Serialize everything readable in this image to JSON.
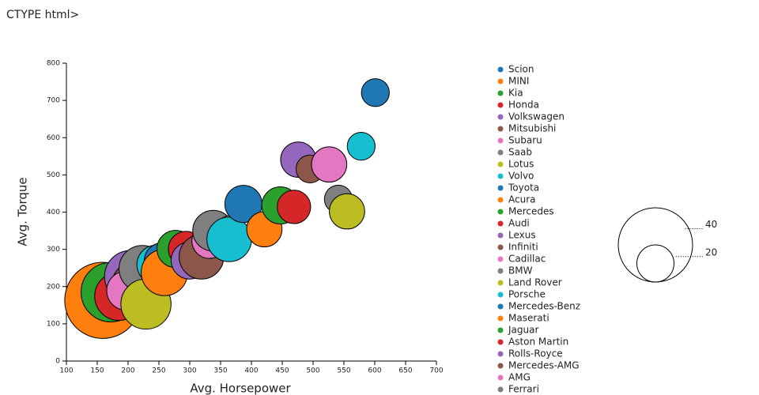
{
  "page_text": "CTYPE html>",
  "chart_data": {
    "type": "bubble",
    "x_label": "Avg. Horsepower",
    "y_label": "Avg. Torque",
    "xlim": [
      100,
      700
    ],
    "xticks": [
      100,
      150,
      200,
      250,
      300,
      350,
      400,
      450,
      500,
      550,
      600,
      650,
      700
    ],
    "ylim": [
      0,
      800
    ],
    "yticks": [
      0,
      100,
      200,
      300,
      400,
      500,
      600,
      700,
      800
    ],
    "series": [
      {
        "name": "Scion",
        "color": "#1f77b4",
        "x": [
          155
        ],
        "values": [
          150
        ],
        "sizes": [
          15
        ]
      },
      {
        "name": "MINI",
        "color": "#ff7f0e",
        "x": [
          159
        ],
        "values": [
          163
        ],
        "sizes": [
          41
        ]
      },
      {
        "name": "Kia",
        "color": "#2ca02c",
        "x": [
          172
        ],
        "values": [
          185
        ],
        "sizes": [
          32
        ]
      },
      {
        "name": "Honda",
        "color": "#d62728",
        "x": [
          185
        ],
        "values": [
          174
        ],
        "sizes": [
          26
        ]
      },
      {
        "name": "Volkswagen",
        "color": "#9467bd",
        "x": [
          204
        ],
        "values": [
          227
        ],
        "sizes": [
          28
        ]
      },
      {
        "name": "Mitsubishi",
        "color": "#8c564b",
        "x": [
          210
        ],
        "values": [
          206
        ],
        "sizes": [
          24
        ]
      },
      {
        "name": "Subaru",
        "color": "#e377c2",
        "x": [
          197
        ],
        "values": [
          189
        ],
        "sizes": [
          21
        ]
      },
      {
        "name": "Saab",
        "color": "#7f7f7f",
        "x": [
          223
        ],
        "values": [
          248
        ],
        "sizes": [
          25
        ]
      },
      {
        "name": "Lotus",
        "color": "#bcbd22",
        "x": [
          229
        ],
        "values": [
          153
        ],
        "sizes": [
          27
        ]
      },
      {
        "name": "Volvo",
        "color": "#17becf",
        "x": [
          246
        ],
        "values": [
          259
        ],
        "sizes": [
          21
        ]
      },
      {
        "name": "Toyota",
        "color": "#1f77b4",
        "x": [
          255
        ],
        "values": [
          270
        ],
        "sizes": [
          19
        ]
      },
      {
        "name": "Acura",
        "color": "#ff7f0e",
        "x": [
          259
        ],
        "values": [
          238
        ],
        "sizes": [
          25
        ]
      },
      {
        "name": "Mercedes",
        "color": "#2ca02c",
        "x": [
          277
        ],
        "values": [
          301
        ],
        "sizes": [
          20
        ]
      },
      {
        "name": "Audi",
        "color": "#d62728",
        "x": [
          294
        ],
        "values": [
          301
        ],
        "sizes": [
          19
        ]
      },
      {
        "name": "Lexus",
        "color": "#9467bd",
        "x": [
          300
        ],
        "values": [
          270
        ],
        "sizes": [
          20
        ]
      },
      {
        "name": "Infiniti",
        "color": "#8c564b",
        "x": [
          319
        ],
        "values": [
          280
        ],
        "sizes": [
          24
        ]
      },
      {
        "name": "Cadillac",
        "color": "#e377c2",
        "x": [
          332
        ],
        "values": [
          323
        ],
        "sizes": [
          19
        ]
      },
      {
        "name": "BMW",
        "color": "#7f7f7f",
        "x": [
          338
        ],
        "values": [
          350
        ],
        "sizes": [
          22
        ]
      },
      {
        "name": "Land Rover",
        "color": "#bcbd22",
        "x": [
          367
        ],
        "values": [
          354
        ],
        "sizes": [
          15
        ]
      },
      {
        "name": "Porsche",
        "color": "#17becf",
        "x": [
          364
        ],
        "values": [
          327
        ],
        "sizes": [
          24
        ]
      },
      {
        "name": "Mercedes-Benz",
        "color": "#1f77b4",
        "x": [
          387
        ],
        "values": [
          422
        ],
        "sizes": [
          20
        ]
      },
      {
        "name": "Maserati",
        "color": "#ff7f0e",
        "x": [
          421
        ],
        "values": [
          354
        ],
        "sizes": [
          19
        ]
      },
      {
        "name": "Jaguar",
        "color": "#2ca02c",
        "x": [
          447
        ],
        "values": [
          418
        ],
        "sizes": [
          20
        ]
      },
      {
        "name": "Aston Martin",
        "color": "#d62728",
        "x": [
          469
        ],
        "values": [
          414
        ],
        "sizes": [
          18
        ]
      },
      {
        "name": "Rolls-Royce",
        "color": "#9467bd",
        "x": [
          476
        ],
        "values": [
          541
        ],
        "sizes": [
          19
        ]
      },
      {
        "name": "Mercedes-AMG",
        "color": "#8c564b",
        "x": [
          495
        ],
        "values": [
          516
        ],
        "sizes": [
          15
        ]
      },
      {
        "name": "AMG",
        "color": "#e377c2",
        "x": [
          526
        ],
        "values": [
          528
        ],
        "sizes": [
          19
        ]
      },
      {
        "name": "Ferrari",
        "color": "#7f7f7f",
        "x": [
          541
        ],
        "values": [
          435
        ],
        "sizes": [
          15
        ]
      },
      {
        "name": null,
        "color": "#bcbd22",
        "x": [
          555
        ],
        "values": [
          402
        ],
        "sizes": [
          19
        ]
      },
      {
        "name": null,
        "color": "#17becf",
        "x": [
          578
        ],
        "values": [
          577
        ],
        "sizes": [
          15
        ]
      },
      {
        "name": null,
        "color": "#1f77b4",
        "x": [
          601
        ],
        "values": [
          721
        ],
        "sizes": [
          15
        ]
      }
    ],
    "size_legend": [
      40,
      20
    ]
  }
}
